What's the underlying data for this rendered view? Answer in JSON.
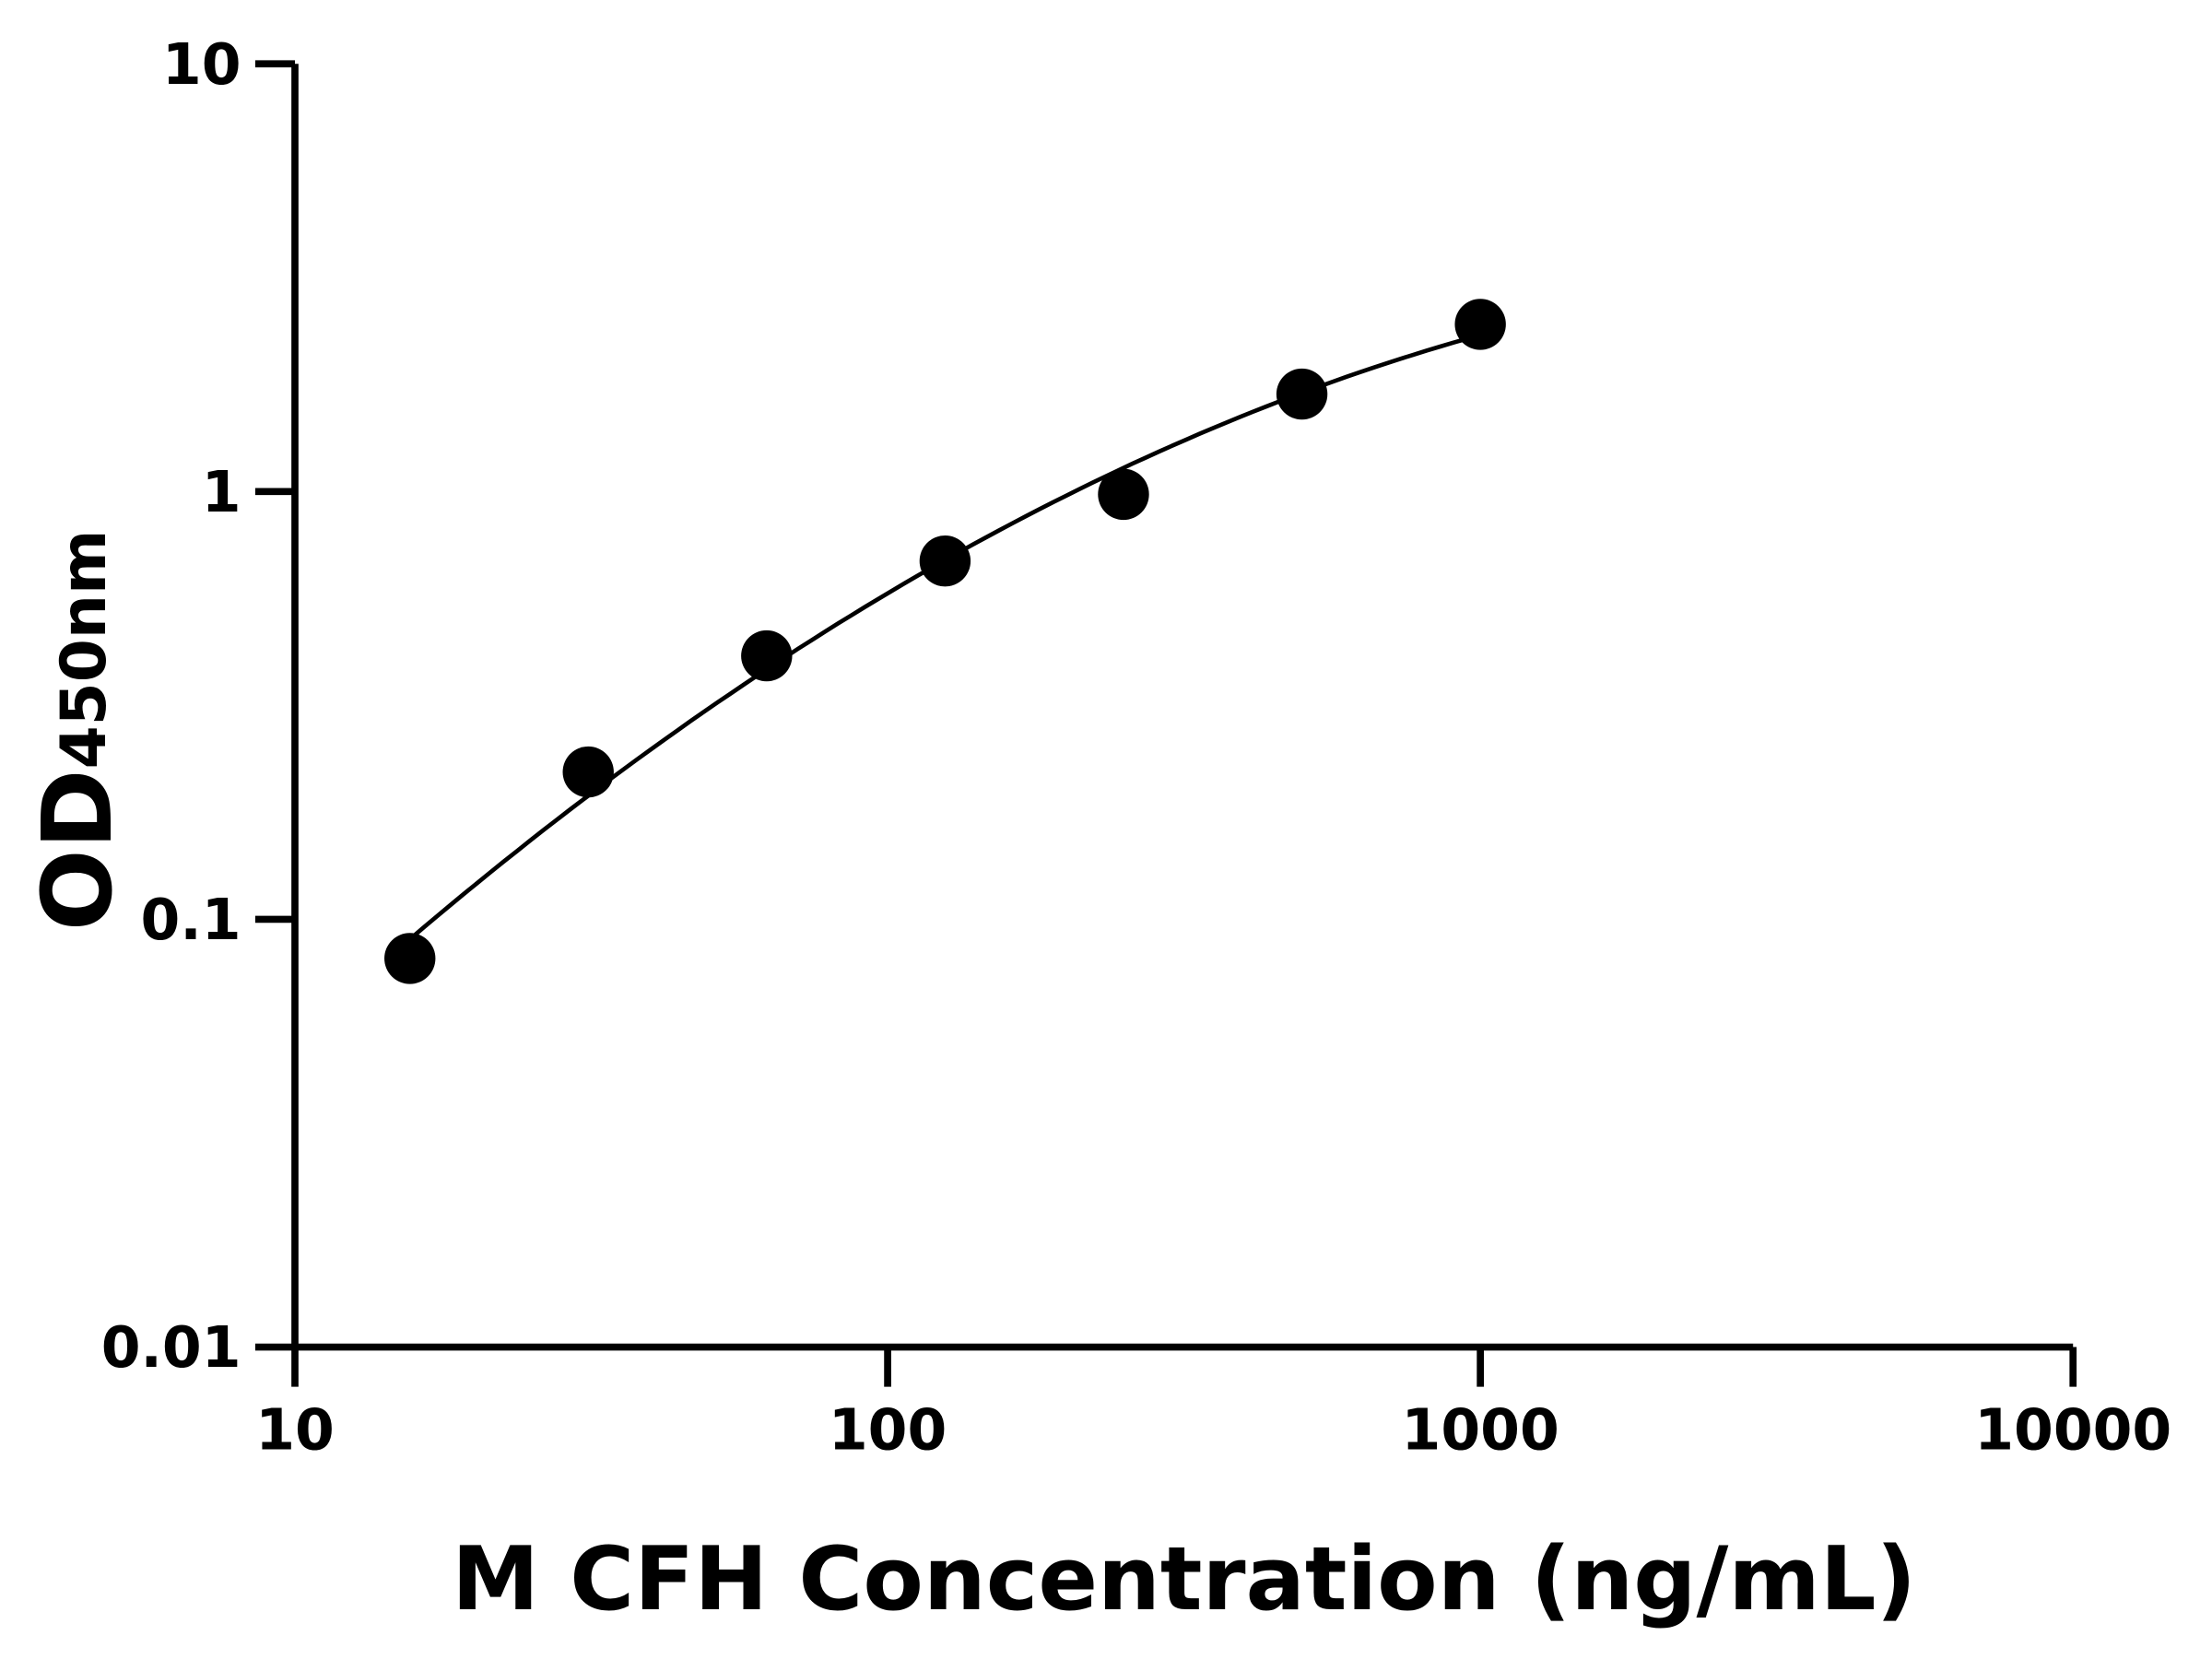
{
  "chart_data": {
    "type": "scatter",
    "title": "",
    "xlabel": "M CFH Concentration (ng/mL)",
    "ylabel_main": "OD",
    "ylabel_sub": "450nm",
    "x_scale": "log",
    "y_scale": "log",
    "xlim": [
      10,
      10000
    ],
    "ylim": [
      0.01,
      10
    ],
    "x_ticks": [
      "10",
      "100",
      "1000",
      "10000"
    ],
    "y_ticks": [
      "0.01",
      "0.1",
      "1",
      "10"
    ],
    "grid": false,
    "legend": "none",
    "series": [
      {
        "x": [
          15.63,
          31.25,
          62.5,
          125,
          250,
          500,
          1000
        ],
        "y": [
          0.081,
          0.221,
          0.413,
          0.688,
          0.985,
          1.69,
          2.46
        ],
        "fit_curve": true
      }
    ],
    "colors": {
      "points": "#000000",
      "line": "#000000",
      "axes": "#000000"
    }
  }
}
